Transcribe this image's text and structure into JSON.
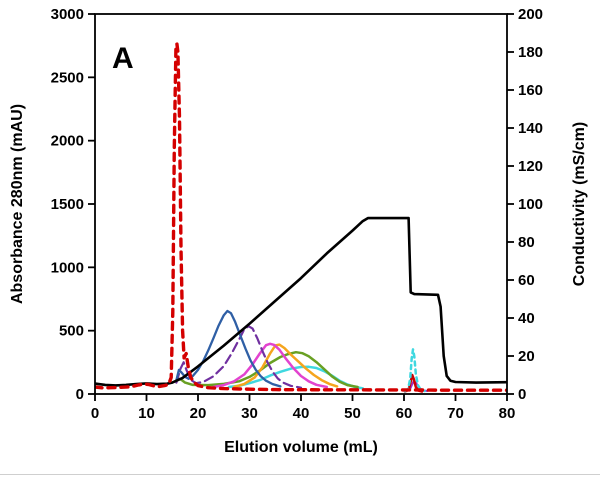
{
  "panel_label": "A",
  "chart_data": {
    "type": "line",
    "title": "",
    "xlabel": "Elution volume (mL)",
    "ylabel_left": "Absorbance 280nm (mAU)",
    "ylabel_right": "Conductivity (mS/cm)",
    "xlim": [
      0,
      80
    ],
    "xticks": [
      0,
      10,
      20,
      30,
      40,
      50,
      60,
      70,
      80
    ],
    "ylim_left": [
      0,
      3000
    ],
    "yticks_left": [
      0,
      500,
      1000,
      1500,
      2000,
      2500,
      3000
    ],
    "ylim_right": [
      0,
      200
    ],
    "yticks_right": [
      0,
      20,
      40,
      60,
      80,
      100,
      120,
      140,
      160,
      180,
      200
    ],
    "grid": false,
    "legend": "none",
    "series": [
      {
        "name": "cyan solid peak",
        "axis": "left",
        "color": "#3fd8e0",
        "width": 2.5,
        "dash": "",
        "points": [
          [
            26,
            55
          ],
          [
            28,
            65
          ],
          [
            30,
            85
          ],
          [
            32,
            110
          ],
          [
            34,
            145
          ],
          [
            36,
            175
          ],
          [
            38,
            200
          ],
          [
            40,
            213
          ],
          [
            41.5,
            215
          ],
          [
            43,
            205
          ],
          [
            44.5,
            180
          ],
          [
            46,
            145
          ],
          [
            47.5,
            105
          ],
          [
            49,
            75
          ],
          [
            50.5,
            55
          ],
          [
            52,
            45
          ]
        ]
      },
      {
        "name": "green solid peak",
        "axis": "left",
        "color": "#69a023",
        "width": 2.5,
        "dash": "",
        "points": [
          [
            16.5,
            120
          ],
          [
            17.5,
            90
          ],
          [
            19,
            72
          ],
          [
            22,
            70
          ],
          [
            25,
            80
          ],
          [
            28,
            100
          ],
          [
            30,
            135
          ],
          [
            32,
            185
          ],
          [
            34,
            245
          ],
          [
            36,
            292
          ],
          [
            37.5,
            315
          ],
          [
            39,
            330
          ],
          [
            40.3,
            322
          ],
          [
            41.5,
            298
          ],
          [
            43,
            252
          ],
          [
            44.5,
            196
          ],
          [
            46,
            140
          ],
          [
            47.5,
            97
          ],
          [
            49,
            70
          ],
          [
            51,
            55
          ]
        ]
      },
      {
        "name": "orange solid peak",
        "axis": "left",
        "color": "#f5a51d",
        "width": 2.5,
        "dash": "",
        "points": [
          [
            27,
            55
          ],
          [
            29,
            80
          ],
          [
            31,
            130
          ],
          [
            32.5,
            210
          ],
          [
            34,
            320
          ],
          [
            35,
            383
          ],
          [
            35.8,
            390
          ],
          [
            36.8,
            362
          ],
          [
            38,
            312
          ],
          [
            39.5,
            256
          ],
          [
            41,
            200
          ],
          [
            42.5,
            150
          ],
          [
            44,
            110
          ],
          [
            45.5,
            80
          ],
          [
            47,
            60
          ]
        ]
      },
      {
        "name": "magenta solid peak",
        "axis": "left",
        "color": "#e243cf",
        "width": 2.5,
        "dash": "",
        "points": [
          [
            23,
            55
          ],
          [
            25,
            70
          ],
          [
            27,
            100
          ],
          [
            29,
            155
          ],
          [
            30.5,
            230
          ],
          [
            32,
            320
          ],
          [
            33.2,
            385
          ],
          [
            34,
            396
          ],
          [
            34.8,
            388
          ],
          [
            35.8,
            350
          ],
          [
            37,
            282
          ],
          [
            38.5,
            205
          ],
          [
            40,
            142
          ],
          [
            41.5,
            100
          ],
          [
            43,
            73
          ],
          [
            45,
            55
          ]
        ]
      },
      {
        "name": "violet small peak",
        "axis": "left",
        "color": "#9b30c9",
        "width": 2,
        "dash": "",
        "points": [
          [
            60.3,
            25
          ],
          [
            61.2,
            42
          ],
          [
            61.9,
            105
          ],
          [
            62.4,
            82
          ],
          [
            63,
            46
          ],
          [
            63.8,
            28
          ],
          [
            64.5,
            24
          ]
        ]
      },
      {
        "name": "purple dashed peak",
        "axis": "left",
        "color": "#7030a0",
        "width": 2.2,
        "dash": "9,5",
        "points": [
          [
            15.8,
            90
          ],
          [
            16.6,
            200
          ],
          [
            17.2,
            250
          ],
          [
            17.8,
            185
          ],
          [
            18.6,
            112
          ],
          [
            19.6,
            85
          ],
          [
            21,
            95
          ],
          [
            23,
            140
          ],
          [
            25,
            220
          ],
          [
            26.5,
            318
          ],
          [
            28,
            432
          ],
          [
            29,
            512
          ],
          [
            29.8,
            535
          ],
          [
            30.6,
            516
          ],
          [
            31.5,
            442
          ],
          [
            32.5,
            340
          ],
          [
            33.5,
            250
          ],
          [
            34.5,
            175
          ],
          [
            35.5,
            122
          ],
          [
            36.5,
            90
          ],
          [
            38,
            65
          ],
          [
            40,
            50
          ]
        ]
      },
      {
        "name": "blue solid peak",
        "axis": "left",
        "color": "#2f5fa5",
        "width": 2.3,
        "dash": "",
        "points": [
          [
            15.8,
            110
          ],
          [
            16.3,
            190
          ],
          [
            16.8,
            170
          ],
          [
            17.5,
            135
          ],
          [
            18.2,
            120
          ],
          [
            19,
            142
          ],
          [
            20,
            190
          ],
          [
            21,
            260
          ],
          [
            22,
            345
          ],
          [
            23,
            440
          ],
          [
            24,
            540
          ],
          [
            25,
            622
          ],
          [
            25.7,
            655
          ],
          [
            26.4,
            638
          ],
          [
            27.2,
            570
          ],
          [
            28.2,
            465
          ],
          [
            29.2,
            360
          ],
          [
            30.2,
            265
          ],
          [
            31.2,
            192
          ],
          [
            32.2,
            140
          ],
          [
            33.2,
            105
          ],
          [
            34.5,
            78
          ],
          [
            36,
            60
          ]
        ]
      },
      {
        "name": "red small peak",
        "axis": "left",
        "color": "#cc0000",
        "width": 2.5,
        "dash": "",
        "points": [
          [
            60.2,
            20
          ],
          [
            60.9,
            32
          ],
          [
            61.3,
            98
          ],
          [
            61.6,
            150
          ],
          [
            61.9,
            118
          ],
          [
            62.3,
            55
          ],
          [
            62.8,
            28
          ],
          [
            63.5,
            20
          ]
        ]
      },
      {
        "name": "cyan dashed spike",
        "axis": "left",
        "color": "#3fd8e0",
        "width": 2.5,
        "dash": "4,4",
        "points": [
          [
            60.2,
            22
          ],
          [
            60.8,
            40
          ],
          [
            61.2,
            120
          ],
          [
            61.5,
            282
          ],
          [
            61.75,
            352
          ],
          [
            62,
            298
          ],
          [
            62.3,
            160
          ],
          [
            62.7,
            70
          ],
          [
            63.2,
            36
          ],
          [
            64,
            24
          ]
        ]
      },
      {
        "name": "black conductivity trace",
        "axis": "right",
        "color": "#000000",
        "width": 2.6,
        "dash": "",
        "points": [
          [
            0,
            5.5
          ],
          [
            2,
            4.8
          ],
          [
            4,
            4.5
          ],
          [
            6,
            4.8
          ],
          [
            8,
            5.2
          ],
          [
            10,
            5.6
          ],
          [
            12,
            5.2
          ],
          [
            14,
            5.4
          ],
          [
            15,
            6
          ],
          [
            17,
            8.5
          ],
          [
            20,
            14.5
          ],
          [
            25,
            25.5
          ],
          [
            30,
            37
          ],
          [
            35,
            49
          ],
          [
            40,
            61
          ],
          [
            45,
            74
          ],
          [
            50,
            86
          ],
          [
            52,
            91
          ],
          [
            53,
            92.6
          ],
          [
            56,
            92.6
          ],
          [
            60.9,
            92.6
          ],
          [
            61.3,
            53.5
          ],
          [
            62,
            52.6
          ],
          [
            66.6,
            52.2
          ],
          [
            67.1,
            46
          ],
          [
            67.7,
            20
          ],
          [
            68.3,
            9.5
          ],
          [
            69,
            7
          ],
          [
            70,
            6.3
          ],
          [
            74,
            6
          ],
          [
            80,
            6.2
          ]
        ]
      },
      {
        "name": "red dashed load peak",
        "axis": "left",
        "color": "#d40000",
        "width": 3.4,
        "dash": "7,6",
        "points": [
          [
            0,
            55
          ],
          [
            1.5,
            48
          ],
          [
            3,
            50
          ],
          [
            5,
            53
          ],
          [
            7,
            58
          ],
          [
            8.5,
            72
          ],
          [
            9.5,
            80
          ],
          [
            10.5,
            74
          ],
          [
            11.5,
            63
          ],
          [
            12.5,
            60
          ],
          [
            13.5,
            66
          ],
          [
            14.3,
            76
          ],
          [
            14.8,
            130
          ],
          [
            15.1,
            650
          ],
          [
            15.4,
            1950
          ],
          [
            15.7,
            2720
          ],
          [
            15.9,
            2765
          ],
          [
            16.1,
            2700
          ],
          [
            16.4,
            2180
          ],
          [
            16.7,
            1150
          ],
          [
            17,
            500
          ],
          [
            17.3,
            285
          ],
          [
            17.7,
            320
          ],
          [
            18.1,
            215
          ],
          [
            18.6,
            130
          ],
          [
            19.2,
            92
          ],
          [
            20,
            66
          ],
          [
            22,
            50
          ],
          [
            25,
            43
          ],
          [
            30,
            38
          ],
          [
            35,
            35
          ],
          [
            40,
            34
          ],
          [
            45,
            33
          ],
          [
            50,
            33
          ],
          [
            55,
            32
          ],
          [
            60,
            32
          ],
          [
            62,
            32
          ],
          [
            65,
            31
          ],
          [
            70,
            30
          ],
          [
            75,
            30
          ],
          [
            80,
            30
          ]
        ]
      }
    ]
  }
}
